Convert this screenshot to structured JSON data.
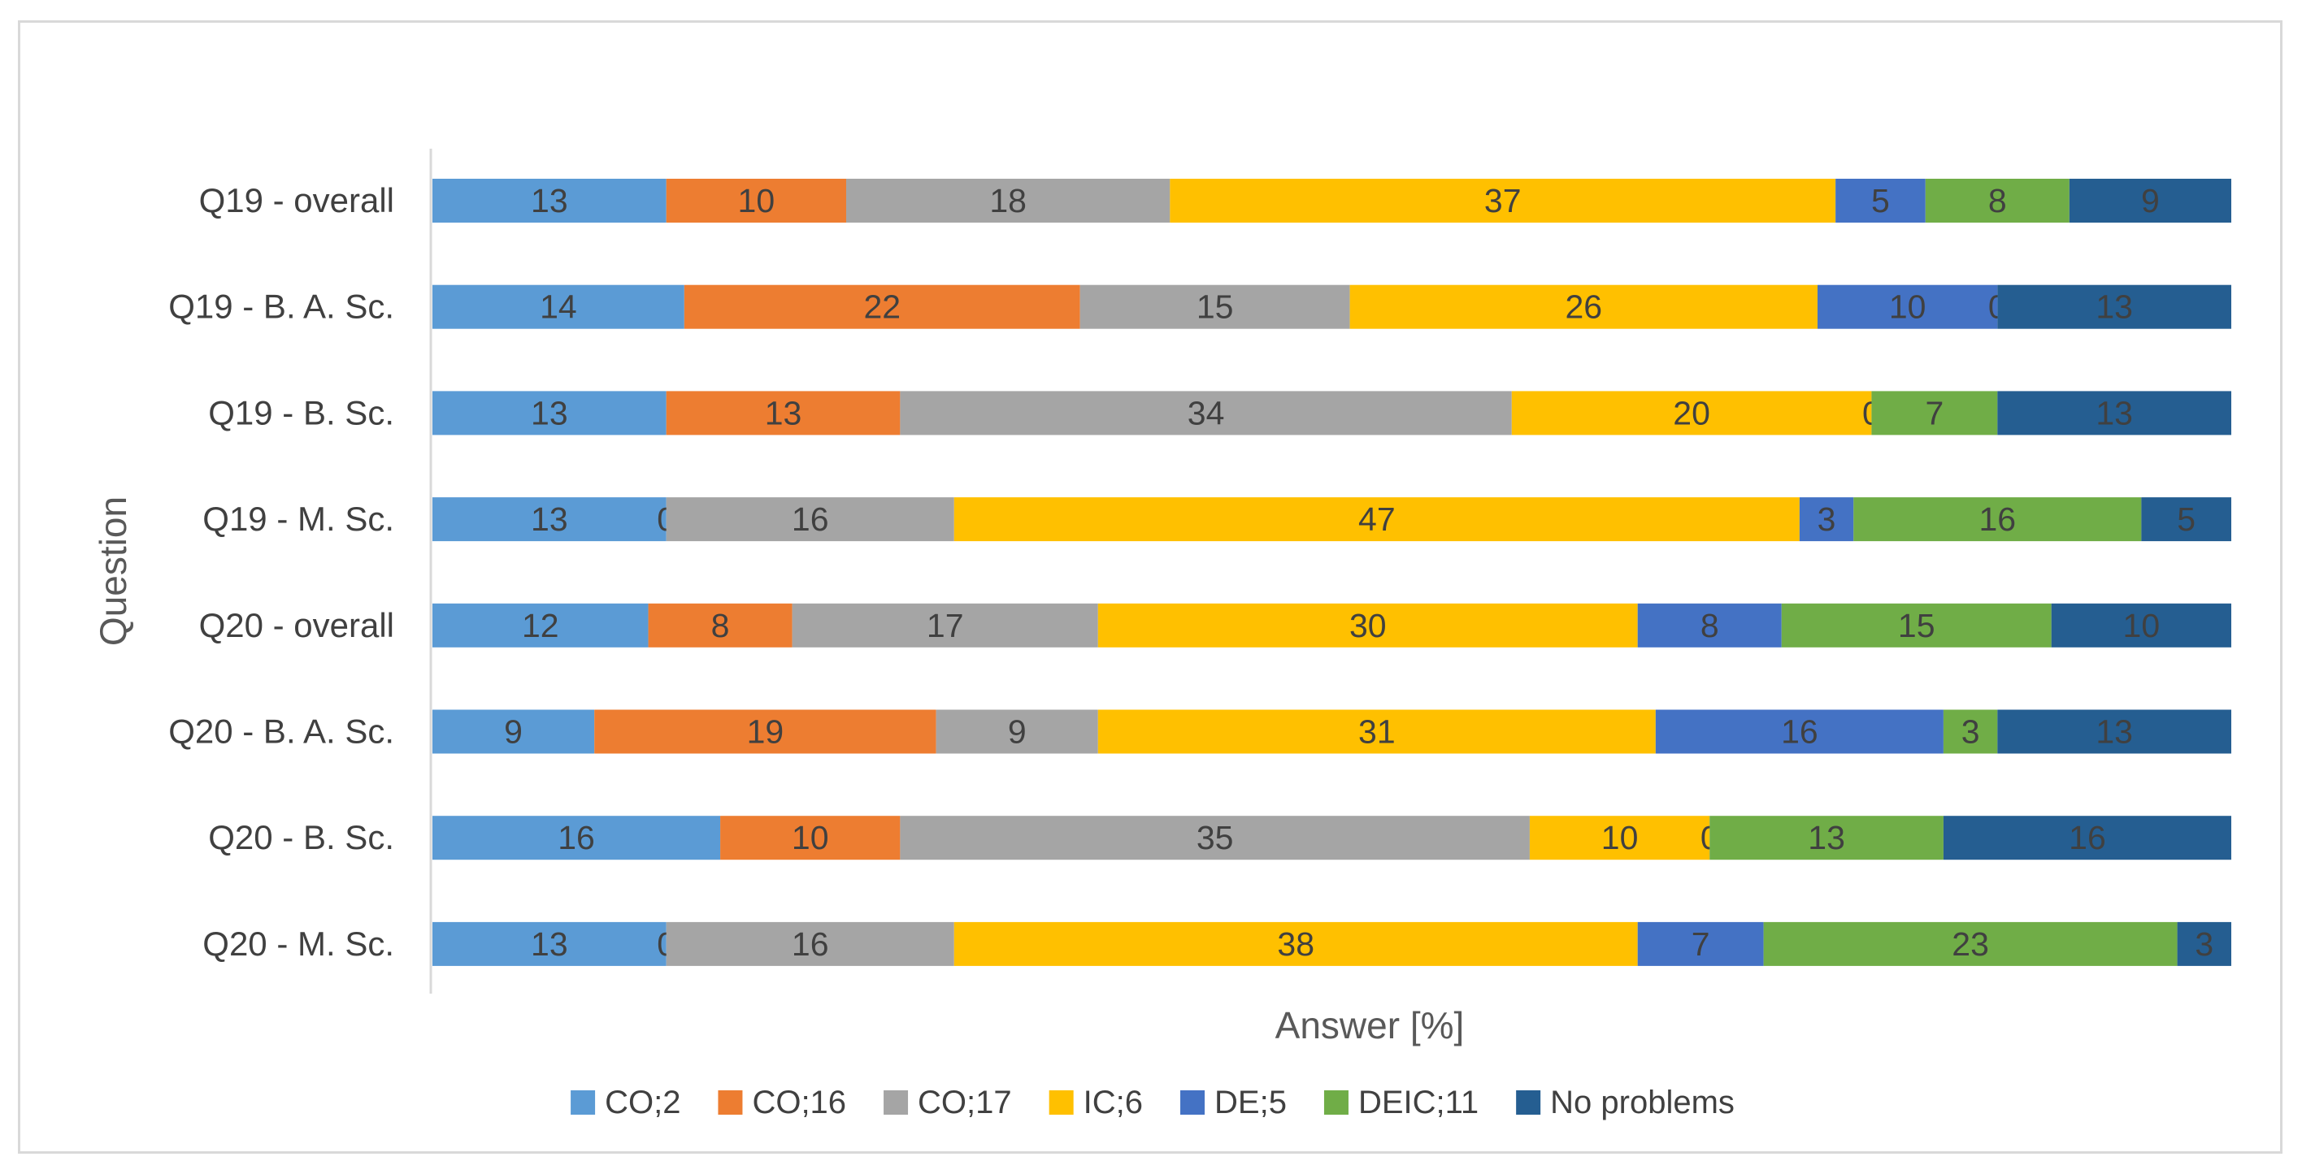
{
  "chart_data": {
    "type": "bar",
    "orientation": "horizontal",
    "stacked": true,
    "xlabel": "Answer [%]",
    "ylabel": "Question",
    "categories": [
      "Q19 - overall",
      "Q19 - B. A. Sc.",
      "Q19 - B. Sc.",
      "Q19 - M. Sc.",
      "Q20 - overall",
      "Q20 - B. A. Sc.",
      "Q20 - B. Sc.",
      "Q20 - M. Sc."
    ],
    "series": [
      {
        "name": "CO;2",
        "color": "#5b9bd5",
        "values": [
          13,
          14,
          13,
          13,
          12,
          9,
          16,
          13
        ]
      },
      {
        "name": "CO;16",
        "color": "#ed7d31",
        "values": [
          10,
          22,
          13,
          0,
          8,
          19,
          10,
          0
        ]
      },
      {
        "name": "CO;17",
        "color": "#a5a5a5",
        "values": [
          18,
          15,
          34,
          16,
          17,
          9,
          35,
          16
        ]
      },
      {
        "name": "IC;6",
        "color": "#ffc000",
        "values": [
          37,
          26,
          20,
          47,
          30,
          31,
          10,
          38
        ]
      },
      {
        "name": "DE;5",
        "color": "#4472c4",
        "values": [
          5,
          10,
          0,
          3,
          8,
          16,
          0,
          7
        ]
      },
      {
        "name": "DEIC;11",
        "color": "#70ad47",
        "values": [
          8,
          0,
          7,
          16,
          15,
          3,
          13,
          23
        ]
      },
      {
        "name": "No problems",
        "color": "#255e91",
        "values": [
          9,
          13,
          13,
          5,
          10,
          13,
          16,
          3
        ]
      }
    ],
    "legend_position": "bottom",
    "grid": false
  }
}
